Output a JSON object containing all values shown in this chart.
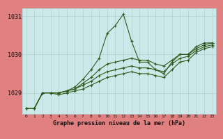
{
  "title": "Graphe pression niveau de la mer (hPa)",
  "background_color": "#cde8e8",
  "border_color": "#e08080",
  "grid_color": "#b0d0d0",
  "line_color": "#2d5a1b",
  "x_values": [
    0,
    1,
    2,
    3,
    4,
    5,
    6,
    7,
    8,
    9,
    10,
    11,
    12,
    13,
    14,
    15,
    16,
    17,
    18,
    19,
    20,
    21,
    22,
    23
  ],
  "series1": [
    1028.6,
    1028.6,
    1029.0,
    1029.0,
    1029.0,
    1029.05,
    1029.15,
    1029.35,
    1029.6,
    1029.9,
    1030.55,
    1030.75,
    1031.05,
    1030.35,
    1029.8,
    1029.8,
    1029.6,
    1029.5,
    1029.8,
    1030.0,
    1030.0,
    1030.2,
    1030.3,
    1030.3
  ],
  "series2": [
    1028.6,
    1028.6,
    1029.0,
    1029.0,
    1029.0,
    1029.05,
    1029.1,
    1029.25,
    1029.4,
    1029.6,
    1029.75,
    1029.8,
    1029.85,
    1029.9,
    1029.85,
    1029.85,
    1029.75,
    1029.7,
    1029.85,
    1030.0,
    1030.0,
    1030.15,
    1030.25,
    1030.3
  ],
  "series3": [
    1028.6,
    1028.6,
    1029.0,
    1029.0,
    1029.0,
    1029.05,
    1029.1,
    1029.2,
    1029.3,
    1029.45,
    1029.55,
    1029.6,
    1029.65,
    1029.7,
    1029.65,
    1029.65,
    1029.6,
    1029.55,
    1029.75,
    1029.9,
    1029.95,
    1030.1,
    1030.2,
    1030.25
  ],
  "series4": [
    1028.6,
    1028.6,
    1029.0,
    1029.0,
    1028.95,
    1029.0,
    1029.05,
    1029.1,
    1029.2,
    1029.3,
    1029.4,
    1029.45,
    1029.5,
    1029.55,
    1029.5,
    1029.5,
    1029.45,
    1029.4,
    1029.6,
    1029.8,
    1029.85,
    1030.05,
    1030.15,
    1030.2
  ],
  "ylim": [
    1028.45,
    1031.2
  ],
  "yticks": [
    1029,
    1030,
    1031
  ],
  "xlim": [
    -0.5,
    23.5
  ],
  "figwidth": 3.2,
  "figheight": 2.0,
  "dpi": 100
}
